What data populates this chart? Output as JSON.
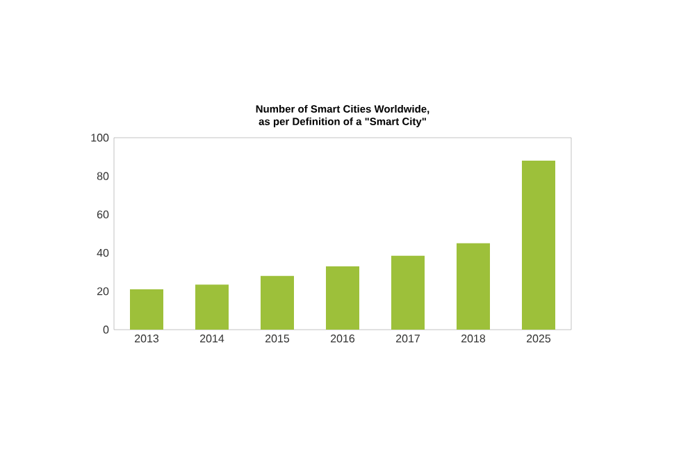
{
  "chart_data": {
    "type": "bar",
    "title": "Number of Smart Cities Worldwide,\nas per Definition of a \"Smart City\"",
    "categories": [
      "2013",
      "2014",
      "2015",
      "2016",
      "2017",
      "2018",
      "2025"
    ],
    "values": [
      21,
      23.5,
      28,
      33,
      38.5,
      45,
      88
    ],
    "color": "#9dc03a",
    "ylim": [
      0,
      100
    ],
    "yticks": [
      0,
      20,
      40,
      60,
      80,
      100
    ]
  }
}
